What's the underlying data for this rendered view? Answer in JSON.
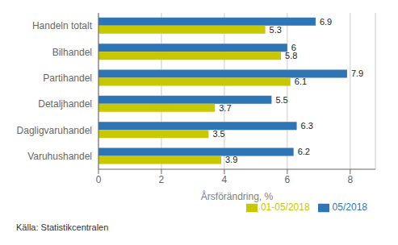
{
  "chart_data": {
    "type": "bar",
    "orientation": "horizontal",
    "categories": [
      "Varuhushandel",
      "Dagligvaruhandel",
      "Detaljhandel",
      "Partihandel",
      "Bilhandel",
      "Handeln totalt"
    ],
    "series": [
      {
        "name": "05/2018",
        "color": "#2E75B6",
        "values": [
          6.2,
          6.3,
          5.5,
          7.9,
          6.0,
          6.9
        ]
      },
      {
        "name": "01-05/2018",
        "color": "#C8C800",
        "values": [
          3.9,
          3.5,
          3.7,
          6.1,
          5.8,
          5.3
        ]
      }
    ],
    "xlabel": "Årsförändring, %",
    "xlim": [
      0,
      8.8
    ],
    "xticks": [
      0,
      2,
      4,
      6,
      8
    ],
    "grid": true,
    "legend": "lower right",
    "data_labels": true,
    "annotations": [
      "Källa: Statistikcentralen"
    ]
  }
}
